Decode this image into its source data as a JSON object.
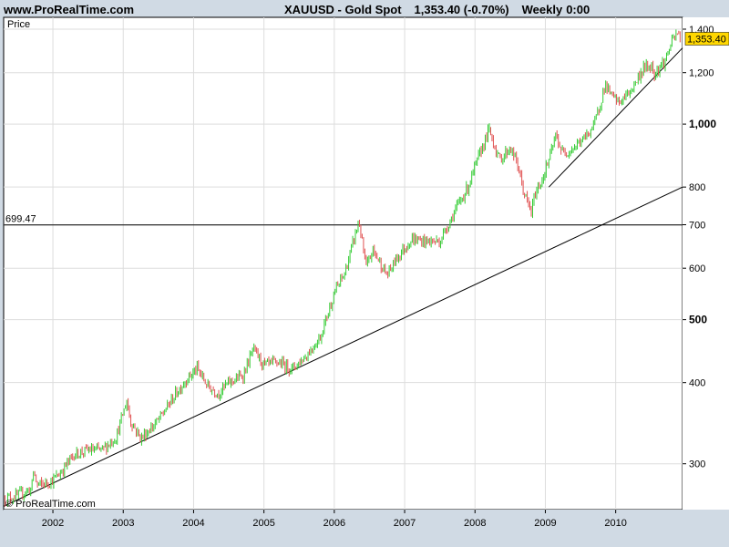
{
  "header": {
    "site": "www.ProRealTime.com",
    "instrument": "XAUUSD - Gold Spot",
    "quote": "1,353.40 (-0.70%)",
    "period": "Weekly",
    "time": "0:00"
  },
  "chart_data": {
    "type": "candlestick",
    "panel_label": "Price",
    "watermark": "© ProRealTime.com",
    "y_scale": "log",
    "ylim": [
      255,
      1460
    ],
    "xlim": [
      2001.3,
      2010.95
    ],
    "grid": true,
    "y_ticks": [
      {
        "value": 300,
        "label": "300",
        "bold": false
      },
      {
        "value": 400,
        "label": "400",
        "bold": false
      },
      {
        "value": 500,
        "label": "500",
        "bold": true
      },
      {
        "value": 600,
        "label": "600",
        "bold": false
      },
      {
        "value": 700,
        "label": "700",
        "bold": false
      },
      {
        "value": 800,
        "label": "800",
        "bold": false
      },
      {
        "value": 1000,
        "label": "1,000",
        "bold": true
      },
      {
        "value": 1200,
        "label": "1,200",
        "bold": false
      },
      {
        "value": 1400,
        "label": "1,400",
        "bold": false
      }
    ],
    "x_ticks": [
      "2002",
      "2003",
      "2004",
      "2005",
      "2006",
      "2007",
      "2008",
      "2009",
      "2010"
    ],
    "last_price": {
      "value": 1353.4,
      "label": "1,353.40",
      "color": "#ffd700"
    },
    "horizontal_line": {
      "value": 699.47,
      "label": "699.47"
    },
    "trendlines": [
      {
        "from": [
          2001.3,
          258
        ],
        "to": [
          2010.95,
          800
        ]
      },
      {
        "from": [
          2009.05,
          800
        ],
        "to": [
          2010.95,
          1310
        ]
      }
    ],
    "up_color": "#33cc33",
    "down_color": "#e05050",
    "price_path": [
      [
        2001.3,
        265
      ],
      [
        2001.5,
        268
      ],
      [
        2001.7,
        275
      ],
      [
        2001.72,
        293
      ],
      [
        2001.78,
        278
      ],
      [
        2001.9,
        280
      ],
      [
        2002.0,
        283
      ],
      [
        2002.1,
        290
      ],
      [
        2002.3,
        310
      ],
      [
        2002.5,
        315
      ],
      [
        2002.7,
        315
      ],
      [
        2002.9,
        330
      ],
      [
        2003.05,
        375
      ],
      [
        2003.1,
        350
      ],
      [
        2003.25,
        328
      ],
      [
        2003.5,
        350
      ],
      [
        2003.75,
        385
      ],
      [
        2003.9,
        405
      ],
      [
        2004.05,
        420
      ],
      [
        2004.2,
        395
      ],
      [
        2004.35,
        385
      ],
      [
        2004.5,
        400
      ],
      [
        2004.7,
        410
      ],
      [
        2004.85,
        450
      ],
      [
        2005.0,
        425
      ],
      [
        2005.2,
        430
      ],
      [
        2005.4,
        420
      ],
      [
        2005.6,
        440
      ],
      [
        2005.8,
        470
      ],
      [
        2006.0,
        550
      ],
      [
        2006.15,
        590
      ],
      [
        2006.35,
        710
      ],
      [
        2006.45,
        600
      ],
      [
        2006.55,
        640
      ],
      [
        2006.75,
        585
      ],
      [
        2006.9,
        625
      ],
      [
        2007.1,
        665
      ],
      [
        2007.3,
        660
      ],
      [
        2007.5,
        660
      ],
      [
        2007.7,
        730
      ],
      [
        2007.9,
        800
      ],
      [
        2008.1,
        920
      ],
      [
        2008.2,
        980
      ],
      [
        2008.35,
        880
      ],
      [
        2008.5,
        920
      ],
      [
        2008.6,
        870
      ],
      [
        2008.7,
        780
      ],
      [
        2008.8,
        730
      ],
      [
        2008.85,
        780
      ],
      [
        2008.95,
        820
      ],
      [
        2009.05,
        880
      ],
      [
        2009.15,
        960
      ],
      [
        2009.25,
        900
      ],
      [
        2009.4,
        920
      ],
      [
        2009.55,
        950
      ],
      [
        2009.7,
        1000
      ],
      [
        2009.85,
        1150
      ],
      [
        2009.95,
        1100
      ],
      [
        2010.05,
        1080
      ],
      [
        2010.2,
        1120
      ],
      [
        2010.4,
        1220
      ],
      [
        2010.5,
        1230
      ],
      [
        2010.55,
        1200
      ],
      [
        2010.7,
        1250
      ],
      [
        2010.8,
        1340
      ],
      [
        2010.88,
        1380
      ],
      [
        2010.92,
        1353.4
      ]
    ]
  }
}
